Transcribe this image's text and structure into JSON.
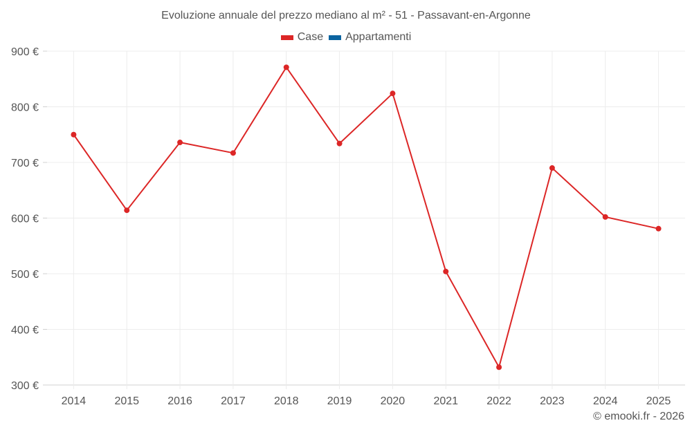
{
  "title": "Evoluzione annuale del prezzo mediano al m² - 51 - Passavant-en-Argonne",
  "legend": [
    {
      "label": "Case",
      "color": "#dc2626"
    },
    {
      "label": "Appartamenti",
      "color": "#0b64a0"
    }
  ],
  "footer": "© emooki.fr - 2026",
  "chart_data": {
    "type": "line",
    "title": "Evoluzione annuale del prezzo mediano al m² - 51 - Passavant-en-Argonne",
    "xlabel": "",
    "ylabel": "",
    "categories": [
      "2014",
      "2015",
      "2016",
      "2017",
      "2018",
      "2019",
      "2020",
      "2021",
      "2022",
      "2023",
      "2024",
      "2025"
    ],
    "series": [
      {
        "name": "Case",
        "color": "#dc2626",
        "values": [
          750,
          614,
          736,
          717,
          871,
          734,
          824,
          504,
          332,
          690,
          602,
          581
        ]
      },
      {
        "name": "Appartamenti",
        "color": "#0b64a0",
        "values": []
      }
    ],
    "ylim": [
      300,
      900
    ],
    "yticks": [
      300,
      400,
      500,
      600,
      700,
      800,
      900
    ],
    "ytick_labels": [
      "300 €",
      "400 €",
      "500 €",
      "600 €",
      "700 €",
      "800 €",
      "900 €"
    ],
    "grid": true,
    "legend_position": "top"
  }
}
